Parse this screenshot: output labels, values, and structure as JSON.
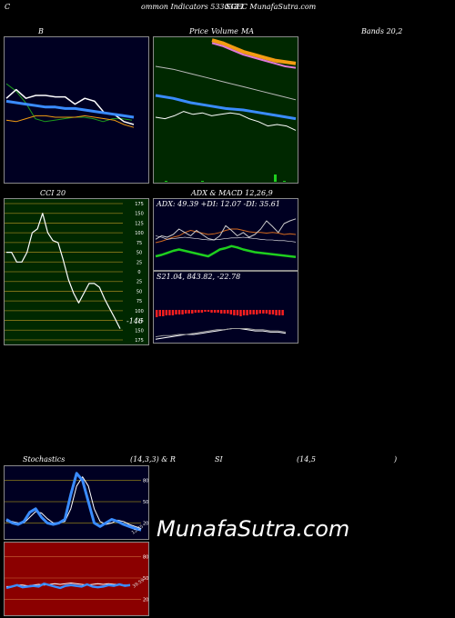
{
  "header": {
    "left": "C",
    "center": "ommon  Indicators 533033 I",
    "right": "SGEC MunafaSutra.com"
  },
  "titles": {
    "bb": "B",
    "ma_left": "Price",
    "ma_mid": "Volume",
    "ma_right": "MA",
    "bands": "Bands 20,2",
    "cci": "CCI 20",
    "adx_macd": "ADX  & MACD 12,26,9",
    "stoch": "Stochastics",
    "stoch_mid": "(14,3,3) & R",
    "rsi": "SI",
    "rsi_params": "(14,5",
    "rsi_close": ")"
  },
  "adx_label": "ADX: 49.39  +DI: 12.07 -DI: 35.61",
  "macd_label": "S21.04,  843.82,  -22.78",
  "cci_value_label": "-146",
  "watermark": "MunafaSutra.com",
  "colors": {
    "green_bg": "#002800",
    "red_bg": "#8b0000",
    "navy_bg": "#000022",
    "blue": "#3a8cff",
    "orange": "#f39c12",
    "line_white": "#ffffff",
    "green_line": "#1ecf1e"
  },
  "chart_data": [
    {
      "type": "line",
      "panel": "Bollinger Bands",
      "series": [
        {
          "values": [
            68,
            63,
            55,
            44,
            42,
            43,
            44,
            45,
            45,
            44,
            42,
            44,
            44,
            43
          ]
        },
        {
          "values": [
            58,
            64,
            58,
            60,
            60,
            59,
            59,
            54,
            58,
            56,
            48,
            47,
            42,
            40
          ]
        },
        {
          "values": [
            56,
            55,
            54,
            53,
            52,
            52,
            51,
            51,
            50,
            49,
            48,
            47,
            46,
            45
          ]
        },
        {
          "values": [
            43,
            42,
            44,
            46,
            46,
            45,
            45,
            45,
            46,
            45,
            44,
            43,
            40,
            38
          ]
        }
      ]
    },
    {
      "type": "line",
      "panel": "Price Volume MA",
      "series": [
        {
          "values": [
            98,
            96,
            93,
            90,
            88,
            86,
            84,
            83,
            82
          ]
        },
        {
          "values": [
            96,
            94,
            91,
            88,
            86,
            84,
            82,
            80,
            79
          ]
        },
        {
          "values": [
            80,
            78,
            75,
            72,
            69,
            66,
            63,
            60,
            57
          ]
        },
        {
          "values": [
            60,
            58,
            55,
            53,
            51,
            50,
            48,
            46,
            44
          ]
        },
        {
          "values": [
            45,
            44,
            46,
            49,
            47,
            48,
            46,
            47,
            48,
            47,
            44,
            42,
            39,
            40,
            39,
            36
          ]
        }
      ],
      "volume": [
        0,
        1,
        0,
        0,
        0,
        1,
        0,
        0,
        0,
        0,
        0,
        0,
        0,
        8,
        1,
        0
      ]
    },
    {
      "type": "line",
      "panel": "CCI",
      "ylim": [
        -175,
        175
      ],
      "ticks": [
        175,
        150,
        125,
        100,
        75,
        50,
        25,
        0,
        -25,
        -50,
        -75,
        -100,
        -125,
        -150,
        -175
      ],
      "tick_labels": [
        "175",
        "150",
        "125",
        "100",
        "75",
        "50",
        "25",
        "0",
        "25",
        "50",
        "75",
        "100",
        "125",
        "150",
        "175"
      ],
      "values": [
        50,
        50,
        25,
        25,
        50,
        100,
        110,
        150,
        100,
        80,
        75,
        30,
        -20,
        -55,
        -80,
        -55,
        -30,
        -30,
        -40,
        -70,
        -95,
        -120,
        -146
      ]
    },
    {
      "type": "line",
      "panel": "ADX",
      "ylim": [
        0,
        100
      ],
      "series": [
        {
          "values": [
            45,
            50,
            48,
            52,
            60,
            55,
            50,
            58,
            52,
            46,
            44,
            50,
            65,
            58,
            50,
            55,
            48,
            52,
            60,
            72,
            64,
            55,
            68,
            72,
            75
          ]
        },
        {
          "values": [
            40,
            42,
            45,
            48,
            50,
            55,
            58,
            56,
            54,
            52,
            53,
            55,
            58,
            60,
            60,
            58,
            56,
            55,
            55,
            54,
            55,
            54,
            52,
            53,
            52
          ]
        },
        {
          "values": [
            50,
            48,
            45,
            46,
            47,
            48,
            47,
            46,
            45,
            44,
            44,
            45,
            46,
            47,
            47,
            48,
            47,
            46,
            45,
            44,
            44,
            43,
            43,
            42,
            41
          ]
        },
        {
          "values": [
            20,
            22,
            25,
            28,
            30,
            28,
            26,
            24,
            22,
            20,
            25,
            30,
            32,
            35,
            33,
            30,
            28,
            26,
            25,
            24,
            23,
            22,
            21,
            20,
            19
          ]
        }
      ]
    },
    {
      "type": "bar",
      "panel": "MACD",
      "values": [
        -8,
        -7,
        -7,
        -6,
        -6,
        -6,
        -5,
        -5,
        -5,
        -4,
        -4,
        -4,
        -3,
        -3,
        -3,
        -2,
        -2,
        -3,
        -3,
        -3,
        -4,
        -4,
        -4,
        -5,
        -6,
        -6,
        -7,
        -6,
        -6,
        -5,
        -5,
        -5,
        -4,
        -4,
        -4,
        -5,
        -5,
        -6,
        -6,
        -6
      ],
      "series": [
        {
          "values": [
            -14,
            -13,
            -12,
            -11,
            -10,
            -10,
            -9,
            -8,
            -7,
            -6,
            -5,
            -5,
            -6,
            -7,
            -7,
            -8,
            -8,
            -9
          ]
        },
        {
          "values": [
            -12,
            -11,
            -11,
            -10,
            -10,
            -9,
            -8,
            -7,
            -6,
            -6,
            -5,
            -5,
            -5,
            -6,
            -6,
            -7,
            -7,
            -8
          ]
        }
      ]
    },
    {
      "type": "line",
      "panel": "Stochastics",
      "ylim": [
        0,
        100
      ],
      "ticks": [
        80,
        50,
        20
      ],
      "tick_labels": [
        "80",
        "50",
        "20"
      ],
      "series": [
        {
          "values": [
            25,
            20,
            18,
            22,
            35,
            40,
            28,
            20,
            18,
            20,
            25,
            60,
            90,
            80,
            50,
            20,
            15,
            20,
            25,
            22,
            18,
            15,
            12,
            10
          ]
        },
        {
          "values": [
            22,
            22,
            20,
            20,
            28,
            36,
            34,
            26,
            20,
            20,
            22,
            40,
            72,
            85,
            72,
            40,
            22,
            18,
            20,
            24,
            22,
            18,
            15,
            12
          ]
        }
      ],
      "value_label": "12.25"
    },
    {
      "type": "line",
      "panel": "RSI",
      "ylim": [
        0,
        100
      ],
      "ticks": [
        80,
        50,
        20
      ],
      "tick_labels": [
        "80",
        "50",
        "20"
      ],
      "series": [
        {
          "values": [
            38,
            38,
            40,
            40,
            39,
            40,
            41,
            40,
            41,
            42,
            41,
            42,
            43,
            42,
            41,
            40,
            41,
            42,
            41,
            42,
            41,
            41,
            40,
            40
          ]
        },
        {
          "values": [
            36,
            38,
            40,
            37,
            38,
            39,
            38,
            42,
            40,
            38,
            36,
            39,
            40,
            39,
            38,
            41,
            38,
            37,
            38,
            40,
            39,
            41,
            39,
            40
          ]
        }
      ],
      "value_label": "39.59"
    }
  ]
}
